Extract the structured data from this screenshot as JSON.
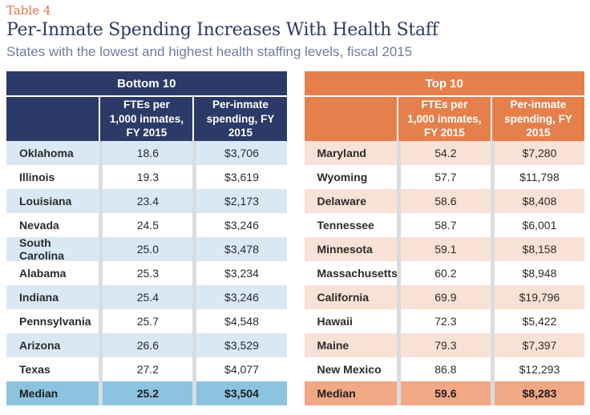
{
  "page": {
    "table_label": "Table 4",
    "title": "Per-Inmate Spending Increases With Health Staff",
    "subtitle": "States with the lowest and highest health staffing levels, fiscal 2015"
  },
  "bottom10": {
    "group_title": "Bottom 10",
    "col_ftes": "FTEs per 1,000 inmates, FY 2015",
    "col_spending": "Per-inmate spending, FY 2015",
    "rows": [
      {
        "state": "Oklahoma",
        "ftes": "18.6",
        "spending": "$3,706"
      },
      {
        "state": "Illinois",
        "ftes": "19.3",
        "spending": "$3,619"
      },
      {
        "state": "Louisiana",
        "ftes": "23.4",
        "spending": "$2,173"
      },
      {
        "state": "Nevada",
        "ftes": "24.5",
        "spending": "$3,246"
      },
      {
        "state": "South Carolina",
        "ftes": "25.0",
        "spending": "$3,478"
      },
      {
        "state": "Alabama",
        "ftes": "25.3",
        "spending": "$3,234"
      },
      {
        "state": "Indiana",
        "ftes": "25.4",
        "spending": "$3,246"
      },
      {
        "state": "Pennsylvania",
        "ftes": "25.7",
        "spending": "$4,548"
      },
      {
        "state": "Arizona",
        "ftes": "26.6",
        "spending": "$3,529"
      },
      {
        "state": "Texas",
        "ftes": "27.2",
        "spending": "$4,077"
      }
    ],
    "median": {
      "state": "Median",
      "ftes": "25.2",
      "spending": "$3,504"
    }
  },
  "top10": {
    "group_title": "Top 10",
    "col_ftes": "FTEs per 1,000 inmates, FY 2015",
    "col_spending": "Per-inmate spending, FY 2015",
    "rows": [
      {
        "state": "Maryland",
        "ftes": "54.2",
        "spending": "$7,280"
      },
      {
        "state": "Wyoming",
        "ftes": "57.7",
        "spending": "$11,798"
      },
      {
        "state": "Delaware",
        "ftes": "58.6",
        "spending": "$8,408"
      },
      {
        "state": "Tennessee",
        "ftes": "58.7",
        "spending": "$6,001"
      },
      {
        "state": "Minnesota",
        "ftes": "59.1",
        "spending": "$8,158"
      },
      {
        "state": "Massachusetts",
        "ftes": "60.2",
        "spending": "$8,948"
      },
      {
        "state": "California",
        "ftes": "69.9",
        "spending": "$19,796"
      },
      {
        "state": "Hawaii",
        "ftes": "72.3",
        "spending": "$5,422"
      },
      {
        "state": "Maine",
        "ftes": "79.3",
        "spending": "$7,397"
      },
      {
        "state": "New Mexico",
        "ftes": "86.8",
        "spending": "$12,293"
      }
    ],
    "median": {
      "state": "Median",
      "ftes": "59.6",
      "spending": "$8,283"
    }
  },
  "colors": {
    "navy_header": "#2b3a67",
    "orange_header": "#e5804c",
    "row_tint_blue": "#d9e8f4",
    "median_blue": "#8cc3df",
    "row_tint_peach": "#f8e1d5",
    "median_peach": "#f2a785",
    "title_navy": "#2e3a64",
    "subtitle_gray_blue": "#6f7da3",
    "label_orange": "#e0764a"
  }
}
